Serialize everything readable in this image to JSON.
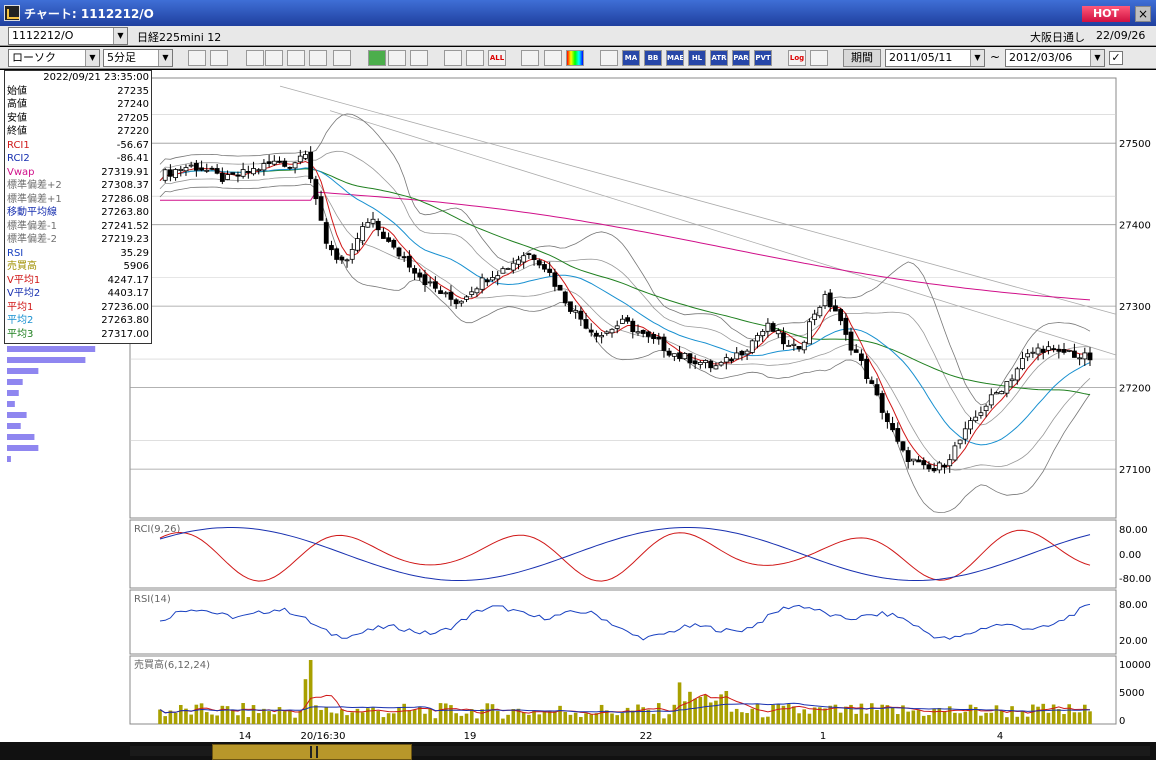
{
  "window": {
    "title": "チャート: 1112212/O",
    "hot_label": "HOT",
    "close_label": "×"
  },
  "info": {
    "symbol_code": "1112212/O",
    "symbol_name": "日経225mini 12",
    "market": "大阪日通し",
    "date": "22/09/26"
  },
  "toolbar": {
    "chart_type": "ローソク",
    "interval": "5分足",
    "period_label": "期間",
    "date_from": "2011/05/11",
    "date_to": "2012/03/06",
    "tilde": "~",
    "check": "✓",
    "buttons": [
      "zoom-icon",
      "crosshair-icon",
      "hand-icon",
      "magnify-icon",
      "bars-icon",
      "arrows-icon",
      "info-icon",
      "pen-icon",
      "cursor-icon",
      "redo-icon",
      "cut-left-icon",
      "cut-right-icon",
      "ALL",
      "settings-icon",
      "eraser-icon",
      "palette-icon",
      "grid-icon",
      "MA",
      "BB",
      "MAE",
      "HL",
      "ATR",
      "PAR",
      "PVT",
      "Log",
      "save-icon"
    ]
  },
  "data_window": {
    "datetime": "2022/09/21 23:35:00",
    "rows": [
      {
        "label": "始値",
        "value": "27235",
        "color": "#000000"
      },
      {
        "label": "高値",
        "value": "27240",
        "color": "#000000"
      },
      {
        "label": "安値",
        "value": "27205",
        "color": "#000000"
      },
      {
        "label": "終値",
        "value": "27220",
        "color": "#000000"
      },
      {
        "label": "RCI1",
        "value": "-56.67",
        "color": "#d01818"
      },
      {
        "label": "RCI2",
        "value": "-86.41",
        "color": "#1830b0"
      },
      {
        "label": "Vwap",
        "value": "27319.91",
        "color": "#d0108a"
      },
      {
        "label": "標準偏差+2",
        "value": "27308.37",
        "color": "#707070"
      },
      {
        "label": "標準偏差+1",
        "value": "27286.08",
        "color": "#707070"
      },
      {
        "label": "移動平均線",
        "value": "27263.80",
        "color": "#1830b0"
      },
      {
        "label": "標準偏差-1",
        "value": "27241.52",
        "color": "#707070"
      },
      {
        "label": "標準偏差-2",
        "value": "27219.23",
        "color": "#707070"
      },
      {
        "label": "RSI",
        "value": "35.29",
        "color": "#1840c0"
      },
      {
        "label": "売買高",
        "value": "5906",
        "color": "#a09000"
      },
      {
        "label": "V平均1",
        "value": "4247.17",
        "color": "#d01818"
      },
      {
        "label": "V平均2",
        "value": "4403.17",
        "color": "#1830b0"
      },
      {
        "label": "平均1",
        "value": "27236.00",
        "color": "#d01818"
      },
      {
        "label": "平均2",
        "value": "27263.80",
        "color": "#1890d0"
      },
      {
        "label": "平均3",
        "value": "27317.00",
        "color": "#208020"
      }
    ]
  },
  "chart_data": [
    {
      "type": "candlestick",
      "title": "",
      "y_ticks": [
        27500,
        27400,
        27300,
        27200,
        27100
      ],
      "ylim": [
        27040,
        27580
      ],
      "x_tick_labels": [
        "14",
        "20/16:30",
        "19",
        "22",
        "1",
        "4"
      ],
      "close_path": [
        27460,
        27465,
        27470,
        27472,
        27468,
        27460,
        27455,
        27460,
        27465,
        27470,
        27475,
        27478,
        27470,
        27500,
        27430,
        27380,
        27360,
        27350,
        27390,
        27405,
        27390,
        27370,
        27360,
        27345,
        27330,
        27320,
        27310,
        27305,
        27320,
        27330,
        27340,
        27345,
        27355,
        27365,
        27360,
        27345,
        27320,
        27300,
        27285,
        27270,
        27265,
        27275,
        27280,
        27270,
        27260,
        27255,
        27245,
        27238,
        27235,
        27230,
        27225,
        27230,
        27240,
        27250,
        27265,
        27275,
        27262,
        27245,
        27255,
        27290,
        27310,
        27295,
        27260,
        27240,
        27210,
        27180,
        27150,
        27120,
        27110,
        27100,
        27098,
        27110,
        27130,
        27150,
        27170,
        27185,
        27200,
        27215,
        27235,
        27245,
        27250,
        27240,
        27245,
        27238,
        27236
      ]
    },
    {
      "type": "line",
      "title": "RCI(9,26)",
      "y_ticks": [
        "80.00",
        "0.00",
        "-80.00"
      ],
      "ylim": [
        -100,
        100
      ],
      "series": [
        {
          "name": "RCI1",
          "color": "#d01818"
        },
        {
          "name": "RCI2",
          "color": "#1830b0"
        }
      ]
    },
    {
      "type": "line",
      "title": "RSI(14)",
      "y_ticks": [
        "80.00",
        "20.00"
      ],
      "ylim": [
        0,
        100
      ],
      "series": [
        {
          "name": "RSI",
          "color": "#1840c0"
        }
      ]
    },
    {
      "type": "bar",
      "title": "売買高(6,12,24)",
      "y_ticks": [
        "10000",
        "5000",
        "0"
      ],
      "ylim": [
        0,
        10000
      ]
    }
  ],
  "volume_profile": [
    0.45,
    0.4,
    0.16,
    0.08,
    0.06,
    0.04,
    0.1,
    0.07,
    0.14,
    0.16,
    0.02
  ]
}
